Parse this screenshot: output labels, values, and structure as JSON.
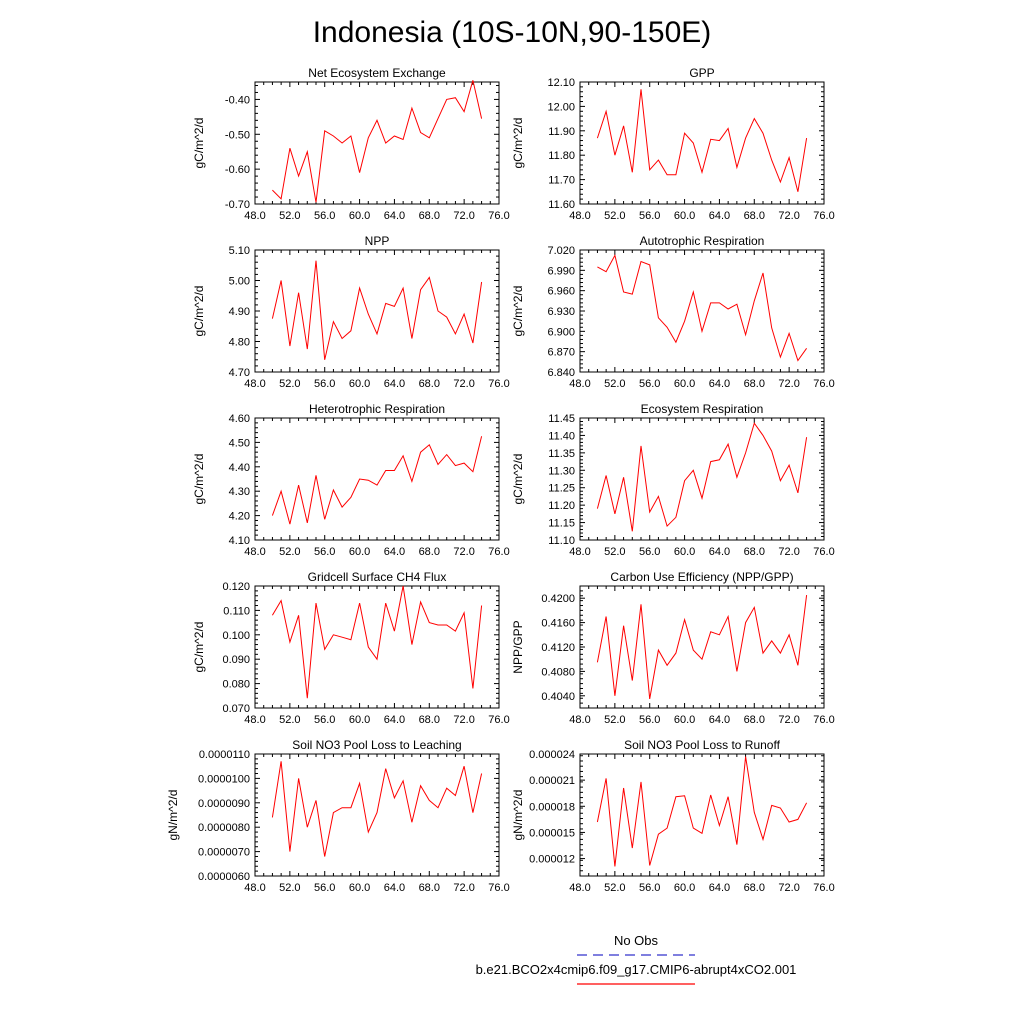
{
  "figure": {
    "title": "Indonesia (10S-10N,90-150E)",
    "line_color": "#ff0000",
    "obs_color": "#3333cc"
  },
  "legend": {
    "obs_label": "No Obs",
    "model_label": "b.e21.BCO2x4cmip6.f09_g17.CMIP6-abrupt4xCO2.001"
  },
  "chart_data": [
    {
      "type": "line",
      "title": "Net Ecosystem Exchange",
      "ylabel": "gC/m^2/d",
      "xlim": [
        48,
        76
      ],
      "xticks": [
        "48.0",
        "52.0",
        "56.0",
        "60.0",
        "64.0",
        "68.0",
        "72.0",
        "76.0"
      ],
      "xtick_values": [
        48,
        52,
        56,
        60,
        64,
        68,
        72,
        76
      ],
      "ylim": [
        -0.7,
        -0.35
      ],
      "yticks": [
        "-0.70",
        "-0.60",
        "-0.50",
        "-0.40"
      ],
      "ytick_values": [
        -0.7,
        -0.6,
        -0.5,
        -0.4
      ],
      "x": [
        50,
        51,
        52,
        53,
        54,
        55,
        56,
        57,
        58,
        59,
        60,
        61,
        62,
        63,
        64,
        65,
        66,
        67,
        68,
        69,
        70,
        71,
        72,
        73,
        74
      ],
      "values": [
        -0.66,
        -0.685,
        -0.54,
        -0.62,
        -0.55,
        -0.695,
        -0.49,
        -0.505,
        -0.525,
        -0.505,
        -0.61,
        -0.51,
        -0.46,
        -0.525,
        -0.505,
        -0.515,
        -0.425,
        -0.495,
        -0.51,
        -0.455,
        -0.4,
        -0.395,
        -0.435,
        -0.345,
        -0.455
      ]
    },
    {
      "type": "line",
      "title": "GPP",
      "ylabel": "gC/m^2/d",
      "xlim": [
        48,
        76
      ],
      "xticks": [
        "48.0",
        "52.0",
        "56.0",
        "60.0",
        "64.0",
        "68.0",
        "72.0",
        "76.0"
      ],
      "xtick_values": [
        48,
        52,
        56,
        60,
        64,
        68,
        72,
        76
      ],
      "ylim": [
        11.6,
        12.1
      ],
      "yticks": [
        "11.60",
        "11.70",
        "11.80",
        "11.90",
        "12.00",
        "12.10"
      ],
      "ytick_values": [
        11.6,
        11.7,
        11.8,
        11.9,
        12.0,
        12.1
      ],
      "x": [
        50,
        51,
        52,
        53,
        54,
        55,
        56,
        57,
        58,
        59,
        60,
        61,
        62,
        63,
        64,
        65,
        66,
        67,
        68,
        69,
        70,
        71,
        72,
        73,
        74
      ],
      "values": [
        11.87,
        11.98,
        11.8,
        11.92,
        11.73,
        12.07,
        11.74,
        11.78,
        11.72,
        11.72,
        11.89,
        11.85,
        11.73,
        11.865,
        11.86,
        11.91,
        11.75,
        11.87,
        11.95,
        11.89,
        11.78,
        11.69,
        11.79,
        11.65,
        11.87
      ]
    },
    {
      "type": "line",
      "title": "NPP",
      "ylabel": "gC/m^2/d",
      "xlim": [
        48,
        76
      ],
      "xticks": [
        "48.0",
        "52.0",
        "56.0",
        "60.0",
        "64.0",
        "68.0",
        "72.0",
        "76.0"
      ],
      "xtick_values": [
        48,
        52,
        56,
        60,
        64,
        68,
        72,
        76
      ],
      "ylim": [
        4.7,
        5.1
      ],
      "yticks": [
        "4.70",
        "4.80",
        "4.90",
        "5.00",
        "5.10"
      ],
      "ytick_values": [
        4.7,
        4.8,
        4.9,
        5.0,
        5.1
      ],
      "x": [
        50,
        51,
        52,
        53,
        54,
        55,
        56,
        57,
        58,
        59,
        60,
        61,
        62,
        63,
        64,
        65,
        66,
        67,
        68,
        69,
        70,
        71,
        72,
        73,
        74
      ],
      "values": [
        4.875,
        5.0,
        4.785,
        4.96,
        4.775,
        5.065,
        4.74,
        4.865,
        4.81,
        4.835,
        4.975,
        4.89,
        4.825,
        4.925,
        4.915,
        4.975,
        4.81,
        4.97,
        5.01,
        4.9,
        4.88,
        4.825,
        4.89,
        4.795,
        4.995
      ]
    },
    {
      "type": "line",
      "title": "Autotrophic Respiration",
      "ylabel": "gC/m^2/d",
      "xlim": [
        48,
        76
      ],
      "xticks": [
        "48.0",
        "52.0",
        "56.0",
        "60.0",
        "64.0",
        "68.0",
        "72.0",
        "76.0"
      ],
      "xtick_values": [
        48,
        52,
        56,
        60,
        64,
        68,
        72,
        76
      ],
      "ylim": [
        6.84,
        7.02
      ],
      "yticks": [
        "6.840",
        "6.870",
        "6.900",
        "6.930",
        "6.960",
        "6.990",
        "7.020"
      ],
      "ytick_values": [
        6.84,
        6.87,
        6.9,
        6.93,
        6.96,
        6.99,
        7.02
      ],
      "x": [
        50,
        51,
        52,
        53,
        54,
        55,
        56,
        57,
        58,
        59,
        60,
        61,
        62,
        63,
        64,
        65,
        66,
        67,
        68,
        69,
        70,
        71,
        72,
        73,
        74
      ],
      "values": [
        6.995,
        6.988,
        7.012,
        6.958,
        6.955,
        7.003,
        6.998,
        6.92,
        6.906,
        6.884,
        6.915,
        6.958,
        6.9,
        6.942,
        6.942,
        6.933,
        6.94,
        6.895,
        6.945,
        6.986,
        6.905,
        6.862,
        6.897,
        6.857,
        6.875
      ]
    },
    {
      "type": "line",
      "title": "Heterotrophic Respiration",
      "ylabel": "gC/m^2/d",
      "xlim": [
        48,
        76
      ],
      "xticks": [
        "48.0",
        "52.0",
        "56.0",
        "60.0",
        "64.0",
        "68.0",
        "72.0",
        "76.0"
      ],
      "xtick_values": [
        48,
        52,
        56,
        60,
        64,
        68,
        72,
        76
      ],
      "ylim": [
        4.1,
        4.6
      ],
      "yticks": [
        "4.10",
        "4.20",
        "4.30",
        "4.40",
        "4.50",
        "4.60"
      ],
      "ytick_values": [
        4.1,
        4.2,
        4.3,
        4.4,
        4.5,
        4.6
      ],
      "x": [
        50,
        51,
        52,
        53,
        54,
        55,
        56,
        57,
        58,
        59,
        60,
        61,
        62,
        63,
        64,
        65,
        66,
        67,
        68,
        69,
        70,
        71,
        72,
        73,
        74
      ],
      "values": [
        4.2,
        4.3,
        4.165,
        4.325,
        4.17,
        4.365,
        4.185,
        4.305,
        4.235,
        4.275,
        4.35,
        4.345,
        4.325,
        4.385,
        4.385,
        4.445,
        4.34,
        4.46,
        4.49,
        4.41,
        4.45,
        4.405,
        4.415,
        4.38,
        4.525
      ]
    },
    {
      "type": "line",
      "title": "Ecosystem Respiration",
      "ylabel": "gC/m^2/d",
      "xlim": [
        48,
        76
      ],
      "xticks": [
        "48.0",
        "52.0",
        "56.0",
        "60.0",
        "64.0",
        "68.0",
        "72.0",
        "76.0"
      ],
      "xtick_values": [
        48,
        52,
        56,
        60,
        64,
        68,
        72,
        76
      ],
      "ylim": [
        11.1,
        11.45
      ],
      "yticks": [
        "11.10",
        "11.15",
        "11.20",
        "11.25",
        "11.30",
        "11.35",
        "11.40",
        "11.45"
      ],
      "ytick_values": [
        11.1,
        11.15,
        11.2,
        11.25,
        11.3,
        11.35,
        11.4,
        11.45
      ],
      "x": [
        50,
        51,
        52,
        53,
        54,
        55,
        56,
        57,
        58,
        59,
        60,
        61,
        62,
        63,
        64,
        65,
        66,
        67,
        68,
        69,
        70,
        71,
        72,
        73,
        74
      ],
      "values": [
        11.19,
        11.285,
        11.175,
        11.28,
        11.125,
        11.37,
        11.18,
        11.225,
        11.14,
        11.165,
        11.27,
        11.3,
        11.22,
        11.325,
        11.33,
        11.375,
        11.28,
        11.35,
        11.435,
        11.4,
        11.355,
        11.27,
        11.315,
        11.235,
        11.395
      ]
    },
    {
      "type": "line",
      "title": "Gridcell Surface CH4 Flux",
      "ylabel": "gC/m^2/d",
      "xlim": [
        48,
        76
      ],
      "xticks": [
        "48.0",
        "52.0",
        "56.0",
        "60.0",
        "64.0",
        "68.0",
        "72.0",
        "76.0"
      ],
      "xtick_values": [
        48,
        52,
        56,
        60,
        64,
        68,
        72,
        76
      ],
      "ylim": [
        0.07,
        0.12
      ],
      "yticks": [
        "0.070",
        "0.080",
        "0.090",
        "0.100",
        "0.110",
        "0.120"
      ],
      "ytick_values": [
        0.07,
        0.08,
        0.09,
        0.1,
        0.11,
        0.12
      ],
      "x": [
        50,
        51,
        52,
        53,
        54,
        55,
        56,
        57,
        58,
        59,
        60,
        61,
        62,
        63,
        64,
        65,
        66,
        67,
        68,
        69,
        70,
        71,
        72,
        73,
        74
      ],
      "values": [
        0.108,
        0.114,
        0.097,
        0.108,
        0.074,
        0.113,
        0.094,
        0.1,
        0.099,
        0.098,
        0.113,
        0.095,
        0.09,
        0.113,
        0.1015,
        0.12,
        0.096,
        0.1135,
        0.105,
        0.104,
        0.104,
        0.1015,
        0.109,
        0.078,
        0.112
      ]
    },
    {
      "type": "line",
      "title": "Carbon Use Efficiency (NPP/GPP)",
      "ylabel": "NPP/GPP",
      "xlim": [
        48,
        76
      ],
      "xticks": [
        "48.0",
        "52.0",
        "56.0",
        "60.0",
        "64.0",
        "68.0",
        "72.0",
        "76.0"
      ],
      "xtick_values": [
        48,
        52,
        56,
        60,
        64,
        68,
        72,
        76
      ],
      "ylim": [
        0.402,
        0.422
      ],
      "yticks": [
        "0.4040",
        "0.4080",
        "0.4120",
        "0.4160",
        "0.4200"
      ],
      "ytick_values": [
        0.404,
        0.408,
        0.412,
        0.416,
        0.42
      ],
      "x": [
        50,
        51,
        52,
        53,
        54,
        55,
        56,
        57,
        58,
        59,
        60,
        61,
        62,
        63,
        64,
        65,
        66,
        67,
        68,
        69,
        70,
        71,
        72,
        73,
        74
      ],
      "values": [
        0.4095,
        0.417,
        0.404,
        0.4155,
        0.4065,
        0.419,
        0.4035,
        0.4115,
        0.409,
        0.411,
        0.4165,
        0.4115,
        0.41,
        0.4145,
        0.414,
        0.417,
        0.408,
        0.416,
        0.4185,
        0.411,
        0.413,
        0.411,
        0.414,
        0.409,
        0.4205
      ]
    },
    {
      "type": "line",
      "title": "Soil NO3 Pool Loss to Leaching",
      "ylabel": "gN/m^2/d",
      "xlim": [
        48,
        76
      ],
      "xticks": [
        "48.0",
        "52.0",
        "56.0",
        "60.0",
        "64.0",
        "68.0",
        "72.0",
        "76.0"
      ],
      "xtick_values": [
        48,
        52,
        56,
        60,
        64,
        68,
        72,
        76
      ],
      "ylim": [
        6e-06,
        1.1e-05
      ],
      "yticks": [
        "0.0000060",
        "0.0000070",
        "0.0000080",
        "0.0000090",
        "0.0000100",
        "0.0000110"
      ],
      "ytick_values": [
        6e-06,
        7e-06,
        8e-06,
        9e-06,
        1e-05,
        1.1e-05
      ],
      "x": [
        50,
        51,
        52,
        53,
        54,
        55,
        56,
        57,
        58,
        59,
        60,
        61,
        62,
        63,
        64,
        65,
        66,
        67,
        68,
        69,
        70,
        71,
        72,
        73,
        74
      ],
      "values": [
        8.4e-06,
        1.07e-05,
        7e-06,
        1e-05,
        8e-06,
        9.1e-06,
        6.8e-06,
        8.6e-06,
        8.8e-06,
        8.8e-06,
        9.8e-06,
        7.8e-06,
        8.6e-06,
        1.04e-05,
        9.2e-06,
        9.9e-06,
        8.2e-06,
        9.7e-06,
        9.1e-06,
        8.8e-06,
        9.6e-06,
        9.3e-06,
        1.05e-05,
        8.6e-06,
        1.02e-05
      ]
    },
    {
      "type": "line",
      "title": "Soil NO3 Pool Loss to Runoff",
      "ylabel": "gN/m^2/d",
      "xlim": [
        48,
        76
      ],
      "xticks": [
        "48.0",
        "52.0",
        "56.0",
        "60.0",
        "64.0",
        "68.0",
        "72.0",
        "76.0"
      ],
      "xtick_values": [
        48,
        52,
        56,
        60,
        64,
        68,
        72,
        76
      ],
      "ylim": [
        1e-05,
        2.4e-05
      ],
      "yticks": [
        "0.000012",
        "0.000015",
        "0.000018",
        "0.000021",
        "0.000024"
      ],
      "ytick_values": [
        1.2e-05,
        1.5e-05,
        1.8e-05,
        2.1e-05,
        2.4e-05
      ],
      "x": [
        50,
        51,
        52,
        53,
        54,
        55,
        56,
        57,
        58,
        59,
        60,
        61,
        62,
        63,
        64,
        65,
        66,
        67,
        68,
        69,
        70,
        71,
        72,
        73,
        74
      ],
      "values": [
        1.62e-05,
        2.12e-05,
        1.11e-05,
        2.01e-05,
        1.32e-05,
        2.08e-05,
        1.12e-05,
        1.48e-05,
        1.55e-05,
        1.91e-05,
        1.92e-05,
        1.55e-05,
        1.49e-05,
        1.93e-05,
        1.58e-05,
        1.91e-05,
        1.36e-05,
        2.37e-05,
        1.73e-05,
        1.42e-05,
        1.81e-05,
        1.78e-05,
        1.62e-05,
        1.65e-05,
        1.84e-05
      ]
    }
  ]
}
